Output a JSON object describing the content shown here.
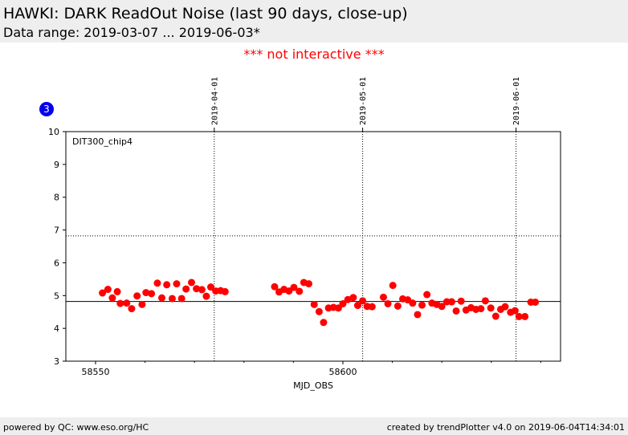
{
  "header": {
    "title": "HAWKI: DARK ReadOut Noise (last 90 days, close-up)",
    "subtitle": "Data range: 2019-03-07 ... 2019-06-03*"
  },
  "notice": "*** not interactive ***",
  "badge": "3",
  "footer": {
    "left": "powered by QC: www.eso.org/HC",
    "right": "created by trendPlotter v4.0 on 2019-06-04T14:34:01"
  },
  "colors": {
    "points": "#ff0000",
    "notice": "#ff0000",
    "badge": "#0000ee",
    "panel": "#eeeeee"
  },
  "chart_data": {
    "type": "scatter",
    "annotation": "DIT300_chip4",
    "xlabel": "MJD_OBS",
    "ylabel": "",
    "xlim": [
      58544,
      58644
    ],
    "ylim": [
      3,
      10
    ],
    "x_ticks": [
      58550,
      58600
    ],
    "y_ticks": [
      3,
      4,
      5,
      6,
      7,
      8,
      9,
      10
    ],
    "date_markers": [
      {
        "label": "2019-04-01",
        "x": 58574
      },
      {
        "label": "2019-05-01",
        "x": 58604
      },
      {
        "label": "2019-06-01",
        "x": 58635
      }
    ],
    "reference_lines": {
      "solid": 4.82,
      "dotted": 6.82
    },
    "grid": false,
    "points": [
      [
        58551.4,
        5.08
      ],
      [
        58552.5,
        5.19
      ],
      [
        58553.4,
        4.93
      ],
      [
        58554.4,
        5.12
      ],
      [
        58555.0,
        4.76
      ],
      [
        58556.3,
        4.77
      ],
      [
        58557.3,
        4.6
      ],
      [
        58558.4,
        4.99
      ],
      [
        58559.4,
        4.73
      ],
      [
        58560.2,
        5.09
      ],
      [
        58561.3,
        5.06
      ],
      [
        58562.5,
        5.38
      ],
      [
        58563.4,
        4.93
      ],
      [
        58564.4,
        5.33
      ],
      [
        58565.5,
        4.91
      ],
      [
        58566.4,
        5.36
      ],
      [
        58567.4,
        4.91
      ],
      [
        58568.3,
        5.2
      ],
      [
        58569.4,
        5.4
      ],
      [
        58570.4,
        5.21
      ],
      [
        58571.5,
        5.18
      ],
      [
        58572.4,
        4.98
      ],
      [
        58573.3,
        5.26
      ],
      [
        58574.3,
        5.14
      ],
      [
        58575.3,
        5.15
      ],
      [
        58576.2,
        5.12
      ],
      [
        58586.2,
        5.27
      ],
      [
        58587.1,
        5.11
      ],
      [
        58588.1,
        5.19
      ],
      [
        58589.1,
        5.14
      ],
      [
        58590.1,
        5.25
      ],
      [
        58591.2,
        5.13
      ],
      [
        58592.1,
        5.4
      ],
      [
        58593.1,
        5.36
      ],
      [
        58594.2,
        4.73
      ],
      [
        58595.2,
        4.51
      ],
      [
        58596.1,
        4.18
      ],
      [
        58597.1,
        4.62
      ],
      [
        58598.1,
        4.64
      ],
      [
        58599.1,
        4.62
      ],
      [
        58600.0,
        4.75
      ],
      [
        58601.0,
        4.88
      ],
      [
        58602.1,
        4.94
      ],
      [
        58603.0,
        4.7
      ],
      [
        58604.0,
        4.84
      ],
      [
        58604.9,
        4.67
      ],
      [
        58605.9,
        4.66
      ],
      [
        58608.2,
        4.95
      ],
      [
        58609.1,
        4.75
      ],
      [
        58610.1,
        5.31
      ],
      [
        58611.1,
        4.68
      ],
      [
        58612.1,
        4.9
      ],
      [
        58613.1,
        4.87
      ],
      [
        58614.1,
        4.77
      ],
      [
        58615.1,
        4.42
      ],
      [
        58616.0,
        4.71
      ],
      [
        58617.0,
        5.03
      ],
      [
        58618.0,
        4.77
      ],
      [
        58619.0,
        4.73
      ],
      [
        58620.0,
        4.67
      ],
      [
        58621.0,
        4.81
      ],
      [
        58622.0,
        4.81
      ],
      [
        58622.9,
        4.53
      ],
      [
        58623.9,
        4.83
      ],
      [
        58624.9,
        4.56
      ],
      [
        58625.9,
        4.63
      ],
      [
        58626.9,
        4.58
      ],
      [
        58627.9,
        4.6
      ],
      [
        58628.8,
        4.84
      ],
      [
        58629.9,
        4.62
      ],
      [
        58630.9,
        4.37
      ],
      [
        58631.9,
        4.58
      ],
      [
        58632.8,
        4.66
      ],
      [
        58633.9,
        4.49
      ],
      [
        58634.8,
        4.54
      ],
      [
        58635.6,
        4.36
      ],
      [
        58636.8,
        4.36
      ],
      [
        58638.0,
        4.8
      ],
      [
        58638.9,
        4.8
      ]
    ]
  }
}
